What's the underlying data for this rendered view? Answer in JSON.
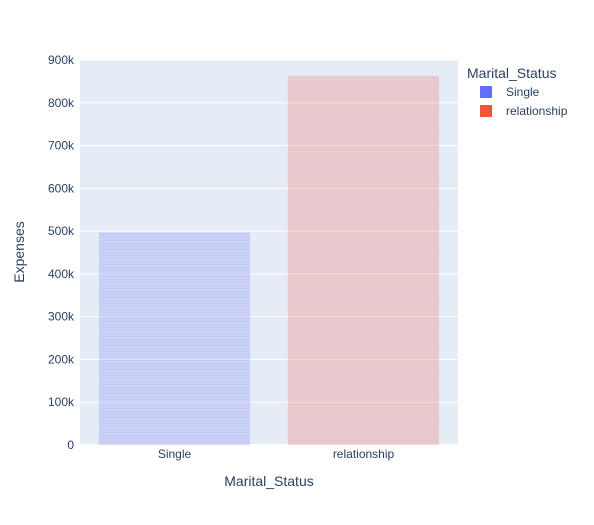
{
  "chart_data": {
    "type": "bar",
    "categories": [
      "Single",
      "relationship"
    ],
    "series": [
      {
        "name": "Single",
        "category": "Single",
        "value": 497000,
        "color": "#636efa"
      },
      {
        "name": "relationship",
        "category": "relationship",
        "value": 863000,
        "color": "#ef553b"
      }
    ],
    "xlabel": "Marital_Status",
    "ylabel": "Expenses",
    "ylim": [
      0,
      900000
    ],
    "yticks": [
      {
        "value": 0,
        "label": "0"
      },
      {
        "value": 100000,
        "label": "100k"
      },
      {
        "value": 200000,
        "label": "200k"
      },
      {
        "value": 300000,
        "label": "300k"
      },
      {
        "value": 400000,
        "label": "400k"
      },
      {
        "value": 500000,
        "label": "500k"
      },
      {
        "value": 600000,
        "label": "600k"
      },
      {
        "value": 700000,
        "label": "700k"
      },
      {
        "value": 800000,
        "label": "800k"
      },
      {
        "value": 900000,
        "label": "900k"
      }
    ],
    "grid": true,
    "legend": {
      "title": "Marital_Status",
      "placement": "top-right",
      "items": [
        "Single",
        "relationship"
      ]
    },
    "plot_bg": "#e5ecf6",
    "bar_fill_opacity": 0.2
  }
}
